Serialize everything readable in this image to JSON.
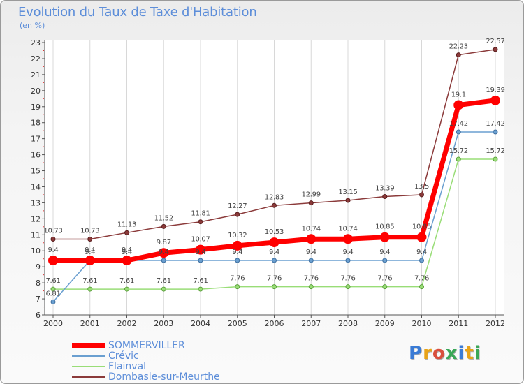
{
  "title": "Evolution du Taux de Taxe d'Habitation",
  "subtitle": "(en %)",
  "logo_text": "Proxiti",
  "chart_data": {
    "type": "line",
    "title": "Evolution du Taux de Taxe d'Habitation",
    "ylabel": "(en %)",
    "xlabel": "",
    "categories": [
      "2000",
      "2001",
      "2002",
      "2003",
      "2004",
      "2005",
      "2006",
      "2007",
      "2008",
      "2009",
      "2010",
      "2011",
      "2012"
    ],
    "ylim": [
      6,
      23
    ],
    "yticks": [
      "6",
      "7",
      "8",
      "9",
      "10",
      "11",
      "12",
      "13",
      "14",
      "15",
      "16",
      "17",
      "18",
      "19",
      "20",
      "21",
      "22",
      "23"
    ],
    "grid": "vertical",
    "legend_position": "bottom-left",
    "series": [
      {
        "name": "SOMMERVILLER",
        "color": "#ff0000",
        "values": [
          9.4,
          9.4,
          9.4,
          9.87,
          10.07,
          10.32,
          10.53,
          10.74,
          10.74,
          10.85,
          10.85,
          19.1,
          19.39
        ],
        "labels": [
          "9.4",
          "9.4",
          "9.4",
          "9.87",
          "10.07",
          "10.32",
          "10.53",
          "10.74",
          "10.74",
          "10.85",
          "10.85",
          "19.1",
          "19.39"
        ]
      },
      {
        "name": "Crévic",
        "color": "#6a9fd0",
        "values": [
          6.81,
          9.4,
          9.4,
          9.4,
          9.4,
          9.4,
          9.4,
          9.4,
          9.4,
          9.4,
          9.4,
          17.42,
          17.42
        ],
        "labels": [
          "6.81",
          "9.4",
          "9.4",
          "9.4",
          "9.4",
          "9.4",
          "9.4",
          "9.4",
          "9.4",
          "9.4",
          "9.4",
          "17.42",
          "17.42"
        ]
      },
      {
        "name": "Flainval",
        "color": "#99dd77",
        "values": [
          7.61,
          7.61,
          7.61,
          7.61,
          7.61,
          7.76,
          7.76,
          7.76,
          7.76,
          7.76,
          7.76,
          15.72,
          15.72
        ],
        "labels": [
          "7.61",
          "7.61",
          "7.61",
          "7.61",
          "7.61",
          "7.76",
          "7.76",
          "7.76",
          "7.76",
          "7.76",
          "7.76",
          "15.72",
          "15.72"
        ]
      },
      {
        "name": "Dombasle-sur-Meurthe",
        "color": "#8b3a3a",
        "values": [
          10.73,
          10.73,
          11.13,
          11.52,
          11.81,
          12.27,
          12.83,
          12.99,
          13.15,
          13.39,
          13.5,
          22.23,
          22.57
        ],
        "labels": [
          "10.73",
          "10.73",
          "11.13",
          "11.52",
          "11.81",
          "12.27",
          "12.83",
          "12.99",
          "13.15",
          "13.39",
          "13.5",
          "22.23",
          "22.57"
        ]
      }
    ]
  }
}
